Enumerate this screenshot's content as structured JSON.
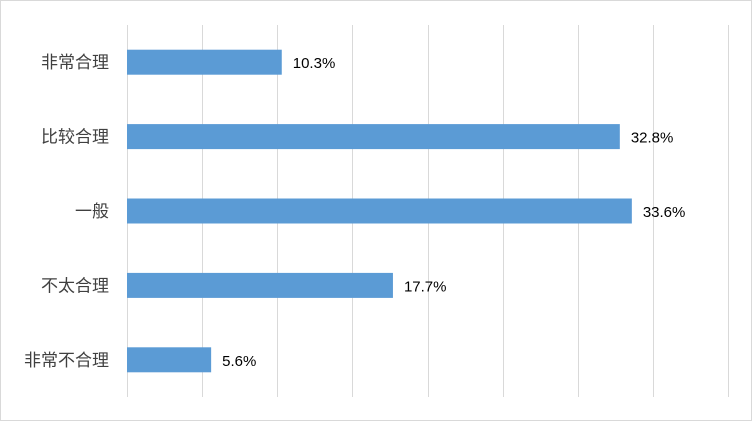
{
  "chart_data": {
    "type": "bar",
    "orientation": "horizontal",
    "categories": [
      "非常合理",
      "比较合理",
      "一般",
      "不太合理",
      "非常不合理"
    ],
    "values": [
      10.3,
      32.8,
      33.6,
      17.7,
      5.6
    ],
    "value_labels": [
      "10.3%",
      "32.8%",
      "33.6%",
      "17.7%",
      "5.6%"
    ],
    "unit": "%",
    "xlim": [
      0,
      40
    ],
    "grid": true,
    "legend": "none",
    "bar_color": "#5b9bd5",
    "grid_color": "#d9d9d9"
  }
}
